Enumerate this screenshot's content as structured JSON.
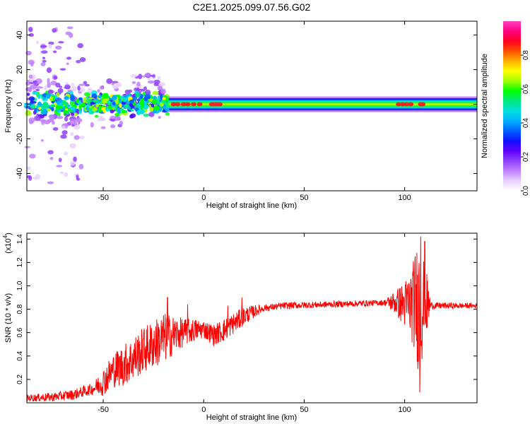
{
  "title": "C2E1.2025.099.07.56.G02",
  "chart_data": [
    {
      "type": "heatmap",
      "xlabel": "Height of straight line (km)",
      "ylabel": "Frequency (Hz)",
      "xlim": [
        -88,
        136
      ],
      "ylim": [
        -50,
        48
      ],
      "xticks": [
        "-50",
        "0",
        "50",
        "100"
      ],
      "yticks": [
        "-40",
        "-20",
        "0",
        "20",
        "40"
      ],
      "grid": false,
      "colorbar": {
        "label": "Normalized spectral amplitude",
        "range": [
          0,
          1
        ],
        "ticks": [
          "0.0",
          "0.2",
          "0.4",
          "0.6",
          "0.8"
        ],
        "colors": [
          "#ffffff",
          "#e8d0ff",
          "#c080ff",
          "#9040ff",
          "#6000ff",
          "#1010ff",
          "#0060ff",
          "#00b0ff",
          "#00e0e0",
          "#00e880",
          "#00ff00",
          "#a0ff00",
          "#ffff00",
          "#ffb000",
          "#ff5000",
          "#ff0020",
          "#ff0080",
          "#ff40c0"
        ]
      },
      "band": {
        "description_free": true,
        "noisy_region_x": [
          -88,
          -18
        ],
        "stable_region_x": [
          -18,
          136
        ],
        "center_freq": 0,
        "halfwidth_hz": 3.5,
        "hotspots_x": [
          -15,
          -13,
          -10,
          -8,
          -5,
          -2,
          4,
          5,
          6,
          7,
          8,
          97,
          99,
          101,
          103,
          108,
          109
        ]
      }
    },
    {
      "type": "line",
      "xlabel": "Height of straight line (km)",
      "ylabel": "SNR (10 * v/v)",
      "yscale_note": "(x10",
      "yscale_exp": "4",
      "xlim": [
        -88,
        136
      ],
      "ylim": [
        0,
        1.45
      ],
      "xticks": [
        "-50",
        "0",
        "50",
        "100"
      ],
      "yticks": [
        "0.2",
        "0.4",
        "0.6",
        "0.8",
        "1.0",
        "1.2",
        "1.4"
      ],
      "grid": false,
      "color": "#ff0000",
      "envelope": [
        {
          "x": -88,
          "y": 0.04
        },
        {
          "x": -75,
          "y": 0.05
        },
        {
          "x": -65,
          "y": 0.07
        },
        {
          "x": -55,
          "y": 0.12
        },
        {
          "x": -50,
          "y": 0.18
        },
        {
          "x": -45,
          "y": 0.28
        },
        {
          "x": -40,
          "y": 0.32
        },
        {
          "x": -35,
          "y": 0.38
        },
        {
          "x": -30,
          "y": 0.45
        },
        {
          "x": -25,
          "y": 0.5
        },
        {
          "x": -20,
          "y": 0.55
        },
        {
          "x": -15,
          "y": 0.58
        },
        {
          "x": -10,
          "y": 0.6
        },
        {
          "x": -5,
          "y": 0.62
        },
        {
          "x": 0,
          "y": 0.63
        },
        {
          "x": 5,
          "y": 0.58
        },
        {
          "x": 10,
          "y": 0.62
        },
        {
          "x": 15,
          "y": 0.68
        },
        {
          "x": 20,
          "y": 0.74
        },
        {
          "x": 25,
          "y": 0.78
        },
        {
          "x": 30,
          "y": 0.81
        },
        {
          "x": 40,
          "y": 0.83
        },
        {
          "x": 60,
          "y": 0.84
        },
        {
          "x": 80,
          "y": 0.85
        },
        {
          "x": 95,
          "y": 0.86
        },
        {
          "x": 100,
          "y": 0.84
        },
        {
          "x": 105,
          "y": 0.85
        },
        {
          "x": 110,
          "y": 0.84
        },
        {
          "x": 115,
          "y": 0.83
        },
        {
          "x": 136,
          "y": 0.83
        }
      ],
      "noise_amplitude": [
        {
          "x": -88,
          "y": 0.03
        },
        {
          "x": -55,
          "y": 0.05
        },
        {
          "x": -50,
          "y": 0.12
        },
        {
          "x": -40,
          "y": 0.18
        },
        {
          "x": -30,
          "y": 0.2
        },
        {
          "x": -20,
          "y": 0.22
        },
        {
          "x": -10,
          "y": 0.12
        },
        {
          "x": 0,
          "y": 0.08
        },
        {
          "x": 10,
          "y": 0.1
        },
        {
          "x": 20,
          "y": 0.08
        },
        {
          "x": 30,
          "y": 0.03
        },
        {
          "x": 90,
          "y": 0.025
        },
        {
          "x": 95,
          "y": 0.1
        },
        {
          "x": 100,
          "y": 0.2
        },
        {
          "x": 104,
          "y": 0.35
        },
        {
          "x": 107,
          "y": 0.6
        },
        {
          "x": 110,
          "y": 0.4
        },
        {
          "x": 113,
          "y": 0.03
        },
        {
          "x": 136,
          "y": 0.02
        }
      ],
      "spikes": [
        {
          "x": -18,
          "y": 0.9
        },
        {
          "x": -8,
          "y": 0.84
        },
        {
          "x": 12,
          "y": 0.83
        },
        {
          "x": 19,
          "y": 0.9
        },
        {
          "x": 108,
          "y": 1.42
        },
        {
          "x": 110,
          "y": 1.38
        },
        {
          "x": 107.5,
          "y": 0.09
        }
      ]
    }
  ]
}
